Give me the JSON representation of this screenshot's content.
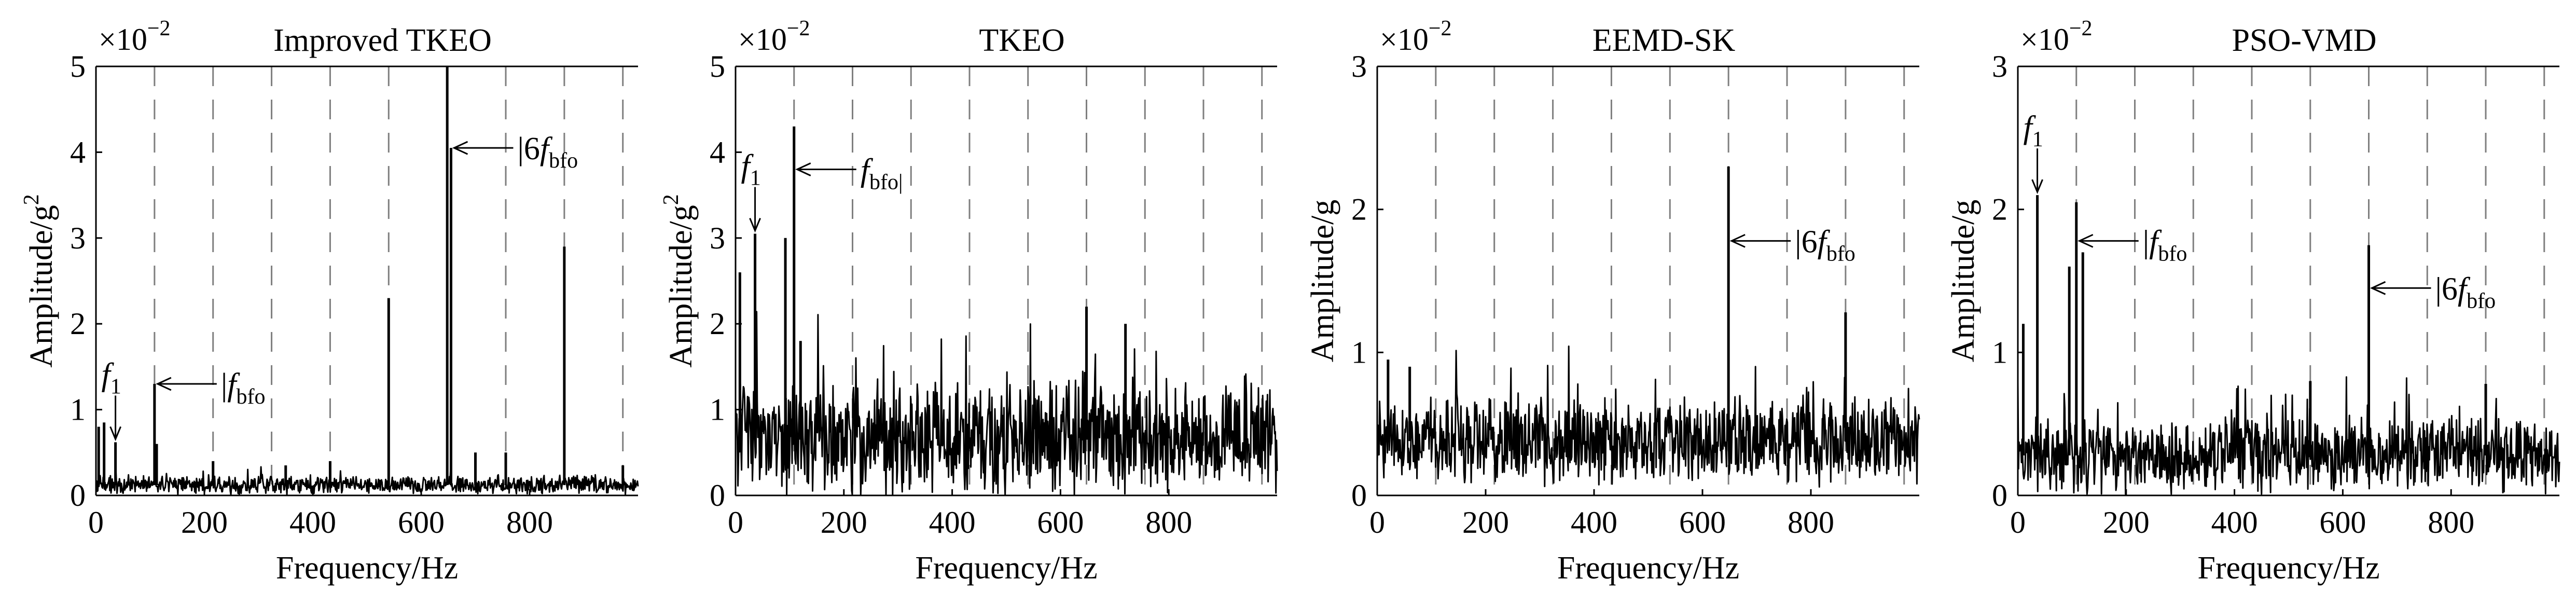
{
  "chart_data": [
    {
      "type": "line",
      "title": "Improved TKEO",
      "xlabel": "Frequency/Hz",
      "ylabel": "Amplitude/g",
      "ylabel_sup": "2",
      "y_exponent_base": "×10",
      "y_exponent_power": "−2",
      "xlim": [
        0,
        1000
      ],
      "ylim": [
        0,
        5
      ],
      "x_ticks": [
        "0",
        "200",
        "400",
        "600",
        "800"
      ],
      "y_ticks": [
        "0",
        "1",
        "2",
        "3",
        "4",
        "5"
      ],
      "grid": "vertical-dashed",
      "grid_x": [
        108,
        216,
        324,
        432,
        540,
        648,
        756,
        864,
        972
      ],
      "noise": {
        "base": 0.12,
        "spread": 0.12
      },
      "peaks": [
        {
          "x": 5,
          "y": 0.8
        },
        {
          "x": 15,
          "y": 0.85
        },
        {
          "x": 36,
          "y": 0.62
        },
        {
          "x": 108,
          "y": 1.3
        },
        {
          "x": 112,
          "y": 0.6
        },
        {
          "x": 216,
          "y": 0.4
        },
        {
          "x": 350,
          "y": 0.35
        },
        {
          "x": 432,
          "y": 0.4
        },
        {
          "x": 540,
          "y": 2.3
        },
        {
          "x": 648,
          "y": 5.0
        },
        {
          "x": 655,
          "y": 4.05
        },
        {
          "x": 700,
          "y": 0.5
        },
        {
          "x": 756,
          "y": 0.5
        },
        {
          "x": 864,
          "y": 2.9
        },
        {
          "x": 972,
          "y": 0.35
        }
      ],
      "annotations": [
        {
          "main": "f",
          "sub": "1",
          "arrow": "down",
          "x": 36,
          "y": 0.62
        },
        {
          "prefix": "|",
          "main": "f",
          "sub": "bfo",
          "arrow": "left",
          "x": 108,
          "y": 1.3
        },
        {
          "prefix": "|6",
          "main": "f",
          "sub": "bfo",
          "arrow": "left",
          "x": 655,
          "y": 4.05
        }
      ]
    },
    {
      "type": "line",
      "title": "TKEO",
      "xlabel": "Frequency/Hz",
      "ylabel": "Amplitude/g",
      "ylabel_sup": "2",
      "y_exponent_base": "×10",
      "y_exponent_power": "−2",
      "xlim": [
        0,
        1000
      ],
      "ylim": [
        0,
        5
      ],
      "x_ticks": [
        "0",
        "200",
        "400",
        "600",
        "800"
      ],
      "y_ticks": [
        "0",
        "1",
        "2",
        "3",
        "4",
        "5"
      ],
      "grid": "vertical-dashed",
      "grid_x": [
        108,
        216,
        324,
        432,
        540,
        648,
        756,
        864,
        972
      ],
      "noise": {
        "base": 0.65,
        "spread": 0.75
      },
      "peaks": [
        {
          "x": 8,
          "y": 2.6
        },
        {
          "x": 36,
          "y": 3.05
        },
        {
          "x": 92,
          "y": 3.0
        },
        {
          "x": 108,
          "y": 4.3
        },
        {
          "x": 120,
          "y": 1.8
        },
        {
          "x": 648,
          "y": 2.2
        },
        {
          "x": 720,
          "y": 2.0
        }
      ],
      "annotations": [
        {
          "main": "f",
          "sub": "1",
          "arrow": "down",
          "x": 36,
          "y": 3.05
        },
        {
          "prefix": "",
          "main": "f",
          "sub": "bfo|",
          "arrow": "left",
          "x": 108,
          "y": 3.8
        }
      ]
    },
    {
      "type": "line",
      "title": "EEMD-SK",
      "xlabel": "Frequency/Hz",
      "ylabel": "Amplitude/g",
      "ylabel_sup": "",
      "y_exponent_base": "×10",
      "y_exponent_power": "−2",
      "xlim": [
        0,
        1000
      ],
      "ylim": [
        0,
        3
      ],
      "x_ticks": [
        "0",
        "200",
        "400",
        "600",
        "800"
      ],
      "y_ticks": [
        "0",
        "1",
        "2",
        "3"
      ],
      "grid": "vertical-dashed",
      "grid_x": [
        108,
        216,
        324,
        432,
        540,
        648,
        756,
        864,
        972
      ],
      "noise": {
        "base": 0.38,
        "spread": 0.35
      },
      "peaks": [
        {
          "x": 20,
          "y": 0.95
        },
        {
          "x": 60,
          "y": 0.9
        },
        {
          "x": 648,
          "y": 2.3
        },
        {
          "x": 864,
          "y": 1.28
        }
      ],
      "annotations": [
        {
          "prefix": "|6",
          "main": "f",
          "sub": "bfo",
          "arrow": "left",
          "x": 648,
          "y": 1.78
        }
      ]
    },
    {
      "type": "line",
      "title": "PSO-VMD",
      "xlabel": "Frequency/Hz",
      "ylabel": "Amplitude/g",
      "ylabel_sup": "",
      "y_exponent_base": "×10",
      "y_exponent_power": "−2",
      "xlim": [
        0,
        1000
      ],
      "ylim": [
        0,
        3
      ],
      "x_ticks": [
        "0",
        "200",
        "400",
        "600",
        "800"
      ],
      "y_ticks": [
        "0",
        "1",
        "2",
        "3"
      ],
      "grid": "vertical-dashed",
      "grid_x": [
        108,
        216,
        324,
        432,
        540,
        648,
        756,
        864,
        972
      ],
      "noise": {
        "base": 0.28,
        "spread": 0.3
      },
      "peaks": [
        {
          "x": 10,
          "y": 1.2
        },
        {
          "x": 36,
          "y": 2.1
        },
        {
          "x": 95,
          "y": 1.6
        },
        {
          "x": 108,
          "y": 2.05
        },
        {
          "x": 120,
          "y": 1.7
        },
        {
          "x": 540,
          "y": 0.8
        },
        {
          "x": 648,
          "y": 1.75
        },
        {
          "x": 864,
          "y": 0.78
        }
      ],
      "annotations": [
        {
          "main": "f",
          "sub": "1",
          "arrow": "down",
          "x": 36,
          "y": 2.1
        },
        {
          "prefix": "|",
          "main": "f",
          "sub": "bfo",
          "arrow": "left",
          "x": 108,
          "y": 1.78
        },
        {
          "prefix": "|6",
          "main": "f",
          "sub": "bfo",
          "arrow": "left",
          "x": 648,
          "y": 1.45
        }
      ]
    }
  ]
}
